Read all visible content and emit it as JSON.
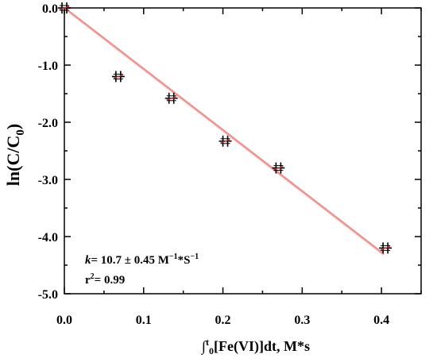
{
  "chart_data": {
    "type": "scatter",
    "xlabel": {
      "integral": "∫",
      "sup": "t",
      "sub": "0",
      "rest": "[Fe(VI)]dt, M*s"
    },
    "ylabel": {
      "main": "ln(C/C",
      "sub": "0",
      "close": ")"
    },
    "xlim": [
      0.0,
      0.45
    ],
    "ylim": [
      -5.0,
      0.0
    ],
    "xticks": [
      0.0,
      0.1,
      0.2,
      0.3,
      0.4
    ],
    "xtick_labels": [
      "0.0",
      "0.1",
      "0.2",
      "0.3",
      "0.4"
    ],
    "yticks": [
      0.0,
      -1.0,
      -2.0,
      -3.0,
      -4.0,
      -5.0
    ],
    "ytick_labels": [
      "0.0",
      "-1.0",
      "-2.0",
      "-3.0",
      "-4.0",
      "-5.0"
    ],
    "series": [
      {
        "x": [
          0.0,
          0.068,
          0.135,
          0.203,
          0.27,
          0.405
        ],
        "y": [
          0.0,
          -1.2,
          -1.58,
          -2.33,
          -2.8,
          -4.2
        ],
        "color": "#000000",
        "marker": "cross-with-error-bars"
      }
    ],
    "fit": {
      "x": [
        0.0,
        0.403
      ],
      "y": [
        0.0,
        -4.31
      ],
      "color": "#e8605a"
    },
    "annotations": {
      "k_symbol": "k",
      "k_text": "= 10.7 ± 0.45 M",
      "k_exp1": "−1",
      "k_mid": "*S",
      "k_exp2": "−1",
      "r_symbol": "r",
      "r_exp": "2",
      "r_text": "= 0.99"
    },
    "grid": false
  }
}
